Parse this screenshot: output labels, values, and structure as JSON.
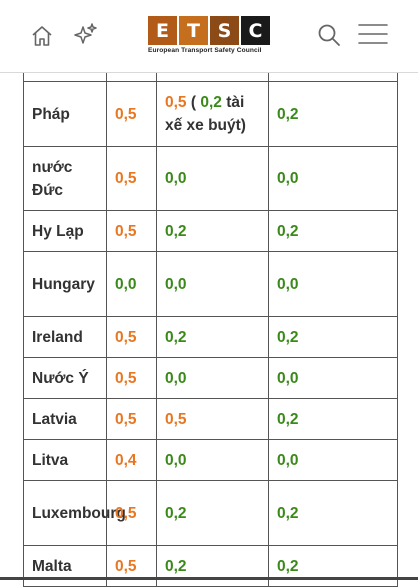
{
  "header": {
    "logo_letters": [
      "E",
      "T",
      "S",
      "C"
    ],
    "logo_colors": [
      "#b25a18",
      "#c56e1e",
      "#8c4a16",
      "#1a1a1a"
    ],
    "logo_subtitle": "European Transport Safety Council",
    "icons": [
      "home-icon",
      "sparkle-icon",
      "search-icon",
      "menu-icon"
    ]
  },
  "colors": {
    "orange": "#e87722",
    "green": "#3a8a1a"
  },
  "table": {
    "rows": [
      {
        "country": "Pháp",
        "v1": "0,5",
        "v2a": "0,5",
        "v2b": " ( ",
        "v2c": "0,2",
        "v2d": " tài xế xe buýt)",
        "v3": "0,2"
      },
      {
        "country": "nước Đức",
        "v1": "0,5",
        "v2": "0,0",
        "v3": "0,0"
      },
      {
        "country": "Hy Lạp",
        "v1": "0,5",
        "v2": "0,2",
        "v3": "0,2"
      },
      {
        "country": "Hungary",
        "v1": "0,0",
        "v2": "0,0",
        "v3": "0,0"
      },
      {
        "country": "Ireland",
        "v1": "0,5",
        "v2": "0,2",
        "v3": "0,2"
      },
      {
        "country": "Nước Ý",
        "v1": "0,5",
        "v2": "0,0",
        "v3": "0,0"
      },
      {
        "country": "Latvia",
        "v1": "0,5",
        "v2": "0,5",
        "v3": "0,2"
      },
      {
        "country": "Litva",
        "v1": "0,4",
        "v2": "0,0",
        "v3": "0,0"
      },
      {
        "country": "Luxembourg",
        "v1": "0,5",
        "v2": "0,2",
        "v3": "0,2"
      },
      {
        "country": "Malta",
        "v1": "0,5",
        "v2": "0,2",
        "v3": "0,2"
      }
    ]
  }
}
